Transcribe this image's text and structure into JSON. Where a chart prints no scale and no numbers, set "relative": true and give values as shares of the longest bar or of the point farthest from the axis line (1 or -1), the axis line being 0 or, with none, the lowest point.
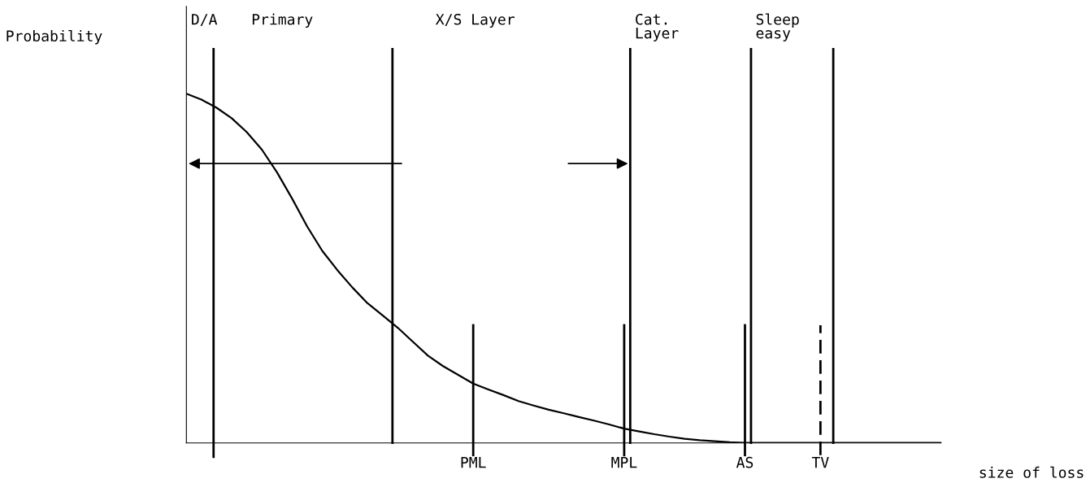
{
  "chart_data": {
    "type": "line",
    "relative": true,
    "xlabel": "size of loss",
    "categories": [
      null,
      null,
      null,
      null,
      null,
      null,
      null,
      null,
      null,
      null,
      null,
      null,
      null,
      null,
      null,
      null,
      null,
      null,
      null,
      "PML",
      null,
      null,
      null,
      null,
      null,
      null,
      null,
      null,
      null,
      "MPL",
      null,
      null,
      null,
      null,
      null,
      null,
      null,
      "AS",
      null,
      null,
      null,
      null,
      "TV",
      null,
      null,
      null,
      null,
      null,
      null,
      null,
      null
    ],
    "series": [
      {
        "color": "#000000",
        "values": [
          1.0,
          0.983,
          0.96,
          0.93,
          0.89,
          0.84,
          0.775,
          0.7,
          0.62,
          0.55,
          0.495,
          0.445,
          0.4,
          0.365,
          0.33,
          0.29,
          0.25,
          0.22,
          0.195,
          0.17,
          0.153,
          0.137,
          0.12,
          0.107,
          0.095,
          0.085,
          0.074,
          0.064,
          0.053,
          0.041,
          0.033,
          0.025,
          0.018,
          0.012,
          0.008,
          0.005,
          0.002,
          0,
          0,
          0,
          0,
          0,
          0,
          0,
          0,
          0,
          0,
          0,
          0,
          0,
          0
        ]
      }
    ],
    "annotations": [
      "Probability",
      "D/A",
      "Primary",
      "X/S Layer",
      "Cat.\nLayer",
      "Sleep\neasy"
    ],
    "ref_lines": [
      {
        "axis": "x",
        "value": "PML"
      },
      {
        "axis": "x",
        "value": "MPL"
      },
      {
        "axis": "x",
        "value": "AS"
      },
      {
        "axis": "x",
        "value": "TV",
        "line_style": "dashed"
      }
    ],
    "line_style": "solid",
    "tick_labels": "x"
  }
}
